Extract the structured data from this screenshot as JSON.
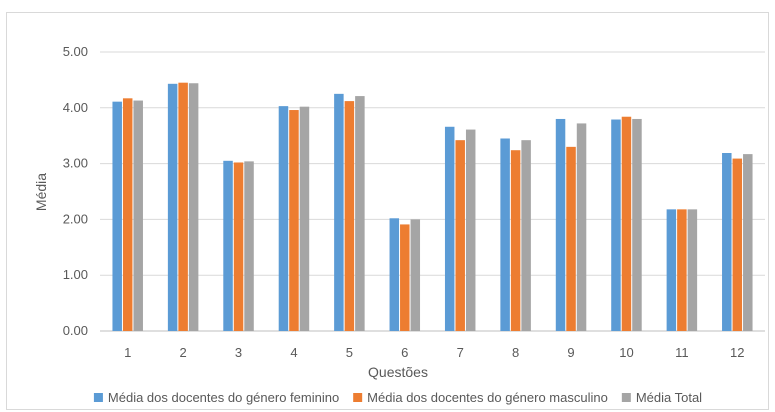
{
  "chart_data": {
    "type": "bar",
    "title": "",
    "xlabel": "Questões",
    "ylabel": "Média",
    "categories": [
      "1",
      "2",
      "3",
      "4",
      "5",
      "6",
      "7",
      "8",
      "9",
      "10",
      "11",
      "12"
    ],
    "ylim": [
      0,
      5
    ],
    "yticks": [
      "0.00",
      "1.00",
      "2.00",
      "3.00",
      "4.00",
      "5.00"
    ],
    "grid": true,
    "legend_position": "bottom",
    "series": [
      {
        "name": "Média dos docentes do género feminino",
        "color": "#5b9bd5",
        "values": [
          4.11,
          4.43,
          3.05,
          4.03,
          4.25,
          2.02,
          3.66,
          3.45,
          3.8,
          3.79,
          2.18,
          3.19
        ]
      },
      {
        "name": "Média dos docentes do género masculino",
        "color": "#ed7d31",
        "values": [
          4.17,
          4.45,
          3.02,
          3.96,
          4.12,
          1.91,
          3.42,
          3.24,
          3.3,
          3.84,
          2.18,
          3.09
        ]
      },
      {
        "name": "Média Total",
        "color": "#a5a5a5",
        "values": [
          4.13,
          4.44,
          3.04,
          4.02,
          4.21,
          2.0,
          3.61,
          3.42,
          3.72,
          3.8,
          2.18,
          3.17
        ]
      }
    ]
  }
}
